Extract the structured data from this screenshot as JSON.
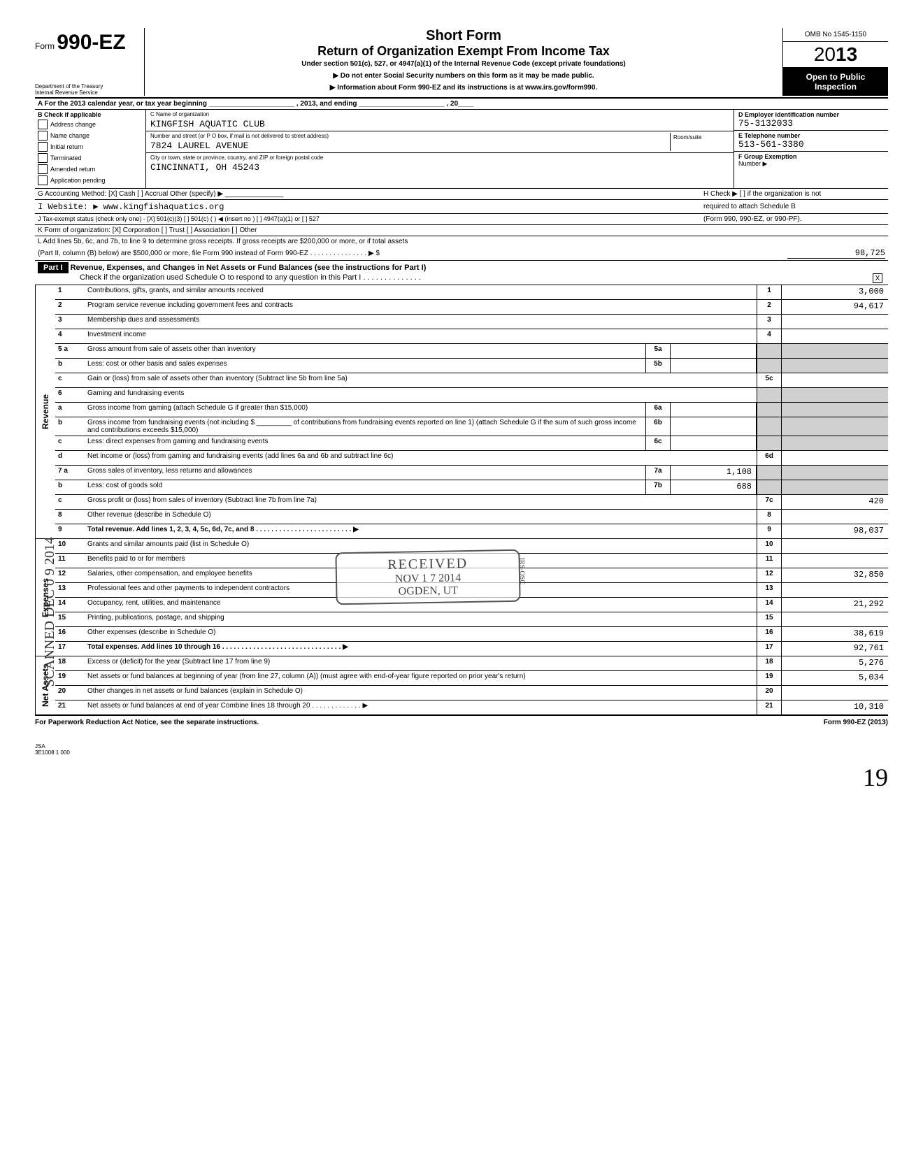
{
  "header": {
    "form_prefix": "Form",
    "form_number": "990-EZ",
    "dept1": "Department of the Treasury",
    "dept2": "Internal Revenue Service",
    "title1": "Short Form",
    "title2": "Return of Organization Exempt From Income Tax",
    "sub": "Under section 501(c), 527, or 4947(a)(1) of the Internal Revenue Code (except private foundations)",
    "arrow1": "▶ Do not enter Social Security numbers on this form as it may be made public.",
    "arrow2": "▶ Information about Form 990-EZ and its instructions is at www.irs.gov/form990.",
    "omb": "OMB No 1545-1150",
    "year_prefix": "20",
    "year_suffix": "13",
    "open1": "Open to Public",
    "open2": "Inspection"
  },
  "rowA": "A  For the 2013 calendar year, or tax year beginning ______________________ , 2013, and ending ______________________ , 20____",
  "B": {
    "title": "B  Check if applicable",
    "items": [
      "Address change",
      "Name change",
      "Initial return",
      "Terminated",
      "Amended return",
      "Application pending"
    ]
  },
  "C": {
    "name_label": "C Name of organization",
    "name": "KINGFISH AQUATIC CLUB",
    "street_label": "Number and street (or P O  box, if mail is not delivered to street address)",
    "room_label": "Room/suite",
    "street": "7824 LAUREL AVENUE",
    "city_label": "City or town, state or province, country, and ZIP or foreign postal code",
    "city": "CINCINNATI, OH  45243"
  },
  "D": {
    "ein_label": "D  Employer identification number",
    "ein": "75-3132033",
    "tel_label": "E  Telephone number",
    "tel": "513-561-3380",
    "grp_label": "F  Group Exemption",
    "grp_num": "Number ▶"
  },
  "G": "G  Accounting Method:  [X] Cash   [ ] Accrual   Other (specify) ▶ _______________",
  "H": "H  Check ▶ [ ] if the organization is not",
  "I": "I   Website: ▶ www.kingfishaquatics.org",
  "H2": "required to attach Schedule B",
  "J": "J   Tax-exempt status (check only one) -  [X] 501(c)(3)   [ ] 501(c) (    ) ◀ (insert no )   [ ] 4947(a)(1) or   [ ] 527",
  "J2": "(Form 990, 990-EZ, or 990-PF).",
  "K": "K  Form of organization:  [X] Corporation   [ ] Trust   [ ] Association   [ ] Other",
  "L": {
    "line1": "L  Add lines 5b, 6c, and 7b, to line 9 to determine gross receipts. If gross receipts are $200,000 or more, or if total assets",
    "line2": "(Part II, column (B) below) are $500,000 or more, file Form 990 instead of Form 990-EZ . . . . . . . . . . . . . . . ▶ $",
    "val": "98,725"
  },
  "part1": {
    "tag": "Part I",
    "title": "Revenue, Expenses, and Changes in Net Assets or Fund Balances (see the instructions for Part I)",
    "check": "Check if the organization used Schedule O to respond to any question in this Part I . . . . . . . . . . . . . .",
    "checked": "X"
  },
  "sections": {
    "revenue": "Revenue",
    "expenses": "Expenses",
    "netassets": "Net Assets"
  },
  "rows": [
    {
      "n": "1",
      "d": "Contributions, gifts, grants, and similar amounts received",
      "r": "1",
      "v": "3,000"
    },
    {
      "n": "2",
      "d": "Program service revenue including government fees and contracts",
      "r": "2",
      "v": "94,617"
    },
    {
      "n": "3",
      "d": "Membership dues and assessments",
      "r": "3",
      "v": ""
    },
    {
      "n": "4",
      "d": "Investment income",
      "r": "4",
      "v": ""
    },
    {
      "n": "5 a",
      "d": "Gross amount from sale of assets other than inventory",
      "mid": "5a",
      "midv": "",
      "shade": true
    },
    {
      "n": "b",
      "d": "Less: cost or other basis and sales expenses",
      "mid": "5b",
      "midv": "",
      "shade": true
    },
    {
      "n": "c",
      "d": "Gain or (loss) from sale of assets other than inventory (Subtract line 5b from line 5a)",
      "r": "5c",
      "v": ""
    },
    {
      "n": "6",
      "d": "Gaming and fundraising events",
      "shade": true
    },
    {
      "n": "a",
      "d": "Gross income from gaming (attach Schedule G if greater than $15,000)",
      "mid": "6a",
      "midv": "",
      "shade": true
    },
    {
      "n": "b",
      "d": "Gross income from fundraising events (not including $ _________ of contributions from fundraising events reported on line 1) (attach Schedule G if the sum of such gross income and contributions exceeds $15,000)",
      "mid": "6b",
      "midv": "",
      "shade": true
    },
    {
      "n": "c",
      "d": "Less: direct expenses from gaming and fundraising events",
      "mid": "6c",
      "midv": "",
      "shade": true
    },
    {
      "n": "d",
      "d": "Net income or (loss) from gaming and fundraising events (add lines 6a and 6b and subtract line 6c)",
      "r": "6d",
      "v": ""
    },
    {
      "n": "7 a",
      "d": "Gross sales of inventory, less returns and allowances",
      "mid": "7a",
      "midv": "1,108",
      "shade": true
    },
    {
      "n": "b",
      "d": "Less: cost of goods sold",
      "mid": "7b",
      "midv": "688",
      "shade": true
    },
    {
      "n": "c",
      "d": "Gross profit or (loss) from sales of inventory (Subtract line 7b from line 7a)",
      "r": "7c",
      "v": "420"
    },
    {
      "n": "8",
      "d": "Other revenue (describe in Schedule O)",
      "r": "8",
      "v": ""
    },
    {
      "n": "9",
      "d": "Total revenue. Add lines 1, 2, 3, 4, 5c, 6d, 7c, and 8 . . . . . . . . . . . . . . . . . . . . . . . . . ▶",
      "r": "9",
      "v": "98,037",
      "bold": true
    }
  ],
  "exp_rows": [
    {
      "n": "10",
      "d": "Grants and similar amounts paid (list in Schedule O)",
      "r": "10",
      "v": ""
    },
    {
      "n": "11",
      "d": "Benefits paid to or for members",
      "r": "11",
      "v": ""
    },
    {
      "n": "12",
      "d": "Salaries, other compensation, and employee benefits",
      "r": "12",
      "v": "32,850"
    },
    {
      "n": "13",
      "d": "Professional fees and other payments to independent contractors",
      "r": "13",
      "v": ""
    },
    {
      "n": "14",
      "d": "Occupancy, rent, utilities, and maintenance",
      "r": "14",
      "v": "21,292"
    },
    {
      "n": "15",
      "d": "Printing, publications, postage, and shipping",
      "r": "15",
      "v": ""
    },
    {
      "n": "16",
      "d": "Other expenses (describe in Schedule O)",
      "r": "16",
      "v": "38,619"
    },
    {
      "n": "17",
      "d": "Total expenses. Add lines 10 through 16 . . . . . . . . . . . . . . . . . . . . . . . . . . . . . . . ▶",
      "r": "17",
      "v": "92,761",
      "bold": true
    }
  ],
  "na_rows": [
    {
      "n": "18",
      "d": "Excess or (deficit) for the year (Subtract line 17 from line 9)",
      "r": "18",
      "v": "5,276"
    },
    {
      "n": "19",
      "d": "Net assets or fund balances at beginning of year (from line 27, column (A)) (must agree with end-of-year figure reported on prior year's return)",
      "r": "19",
      "v": "5,034"
    },
    {
      "n": "20",
      "d": "Other changes in net assets or fund balances (explain in Schedule O)",
      "r": "20",
      "v": ""
    },
    {
      "n": "21",
      "d": "Net assets or fund balances at end of year  Combine lines 18 through 20 . . . . . . . . . . . . . ▶",
      "r": "21",
      "v": "10,310"
    }
  ],
  "stamp": {
    "received": "RECEIVED",
    "date": "NOV 1 7 2014",
    "loc": "OGDEN, UT",
    "side": "IRS-OSC"
  },
  "scanned": "SCANNED DEC 0 9 2014",
  "footer": {
    "left": "For Paperwork Reduction Act Notice, see the separate instructions.",
    "right": "Form 990-EZ (2013)"
  },
  "jsa": {
    "l1": "JSA",
    "l2": "3E1008 1 000"
  },
  "sig": "19"
}
